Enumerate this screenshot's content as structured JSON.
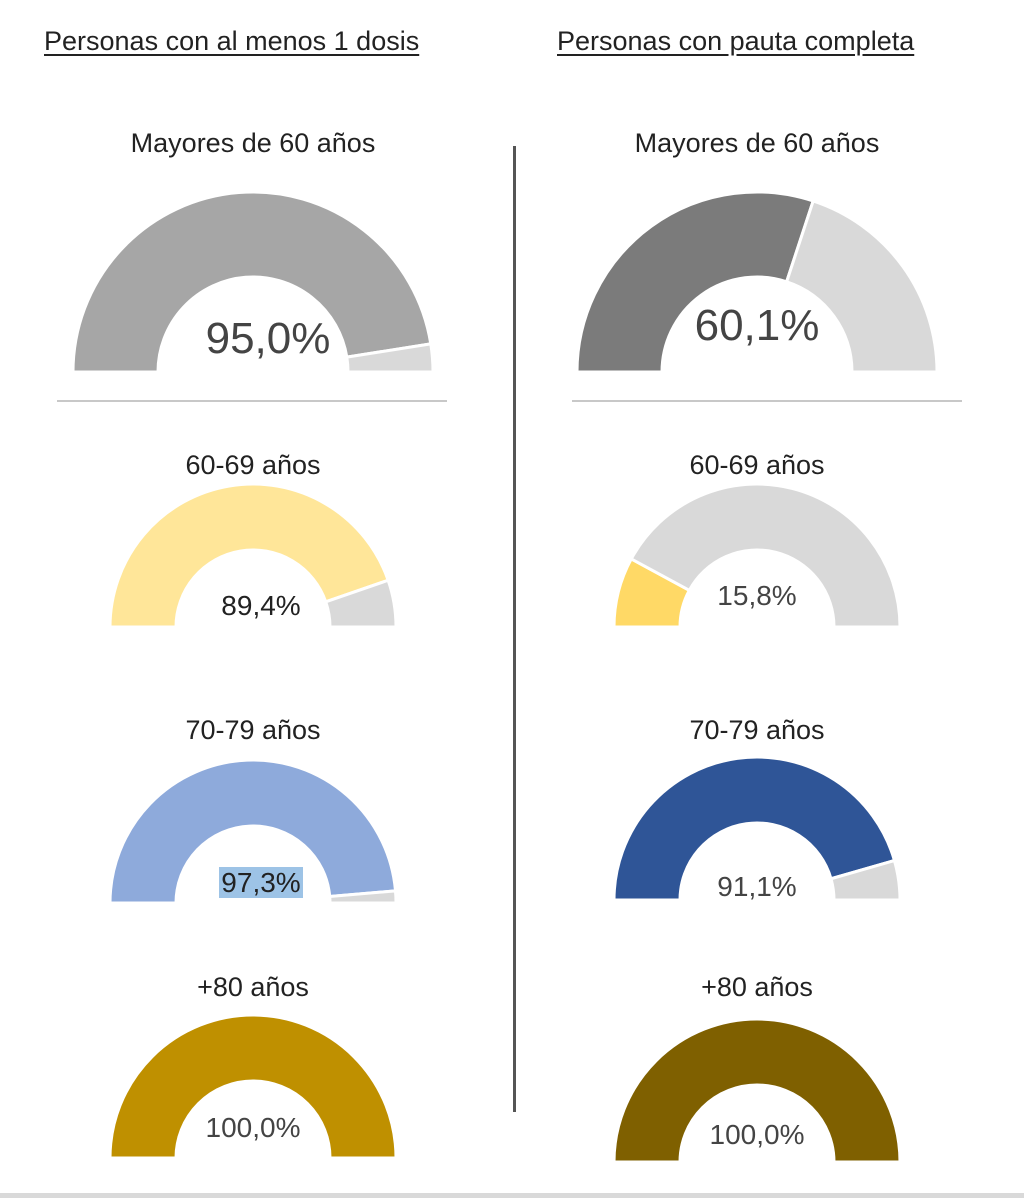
{
  "headers": {
    "left": "Personas con al menos 1 dosis",
    "right": "Personas con pauta completa"
  },
  "chart_data": [
    {
      "type": "gauge",
      "id": "l0",
      "title": "Mayores de 60 años",
      "value": 95.0,
      "label": "95,0%",
      "color": "#a6a6a6",
      "rest_color": "#d9d9d9"
    },
    {
      "type": "gauge",
      "id": "l1",
      "title": "60-69 años",
      "value": 89.4,
      "label": "89,4%",
      "color": "#ffe699",
      "rest_color": "#d9d9d9"
    },
    {
      "type": "gauge",
      "id": "l2",
      "title": "70-79 años",
      "value": 97.3,
      "label": "97,3%",
      "color": "#8eaadb",
      "rest_color": "#d9d9d9",
      "label_highlight": "#9dc3e6"
    },
    {
      "type": "gauge",
      "id": "l3",
      "title": "+80 años",
      "value": 100.0,
      "label": "100,0%",
      "color": "#bf9000",
      "rest_color": "#d9d9d9"
    },
    {
      "type": "gauge",
      "id": "r0",
      "title": "Mayores de 60 años",
      "value": 60.1,
      "label": "60,1%",
      "color": "#7b7b7b",
      "rest_color": "#d9d9d9"
    },
    {
      "type": "gauge",
      "id": "r1",
      "title": "60-69 años",
      "value": 15.8,
      "label": "15,8%",
      "color": "#ffd966",
      "rest_color": "#d9d9d9"
    },
    {
      "type": "gauge",
      "id": "r2",
      "title": "70-79 años",
      "value": 91.1,
      "label": "91,1%",
      "color": "#2f5597",
      "rest_color": "#d9d9d9"
    },
    {
      "type": "gauge",
      "id": "r3",
      "title": "+80 años",
      "value": 100.0,
      "label": "100,0%",
      "color": "#7f6000",
      "rest_color": "#d9d9d9"
    }
  ]
}
